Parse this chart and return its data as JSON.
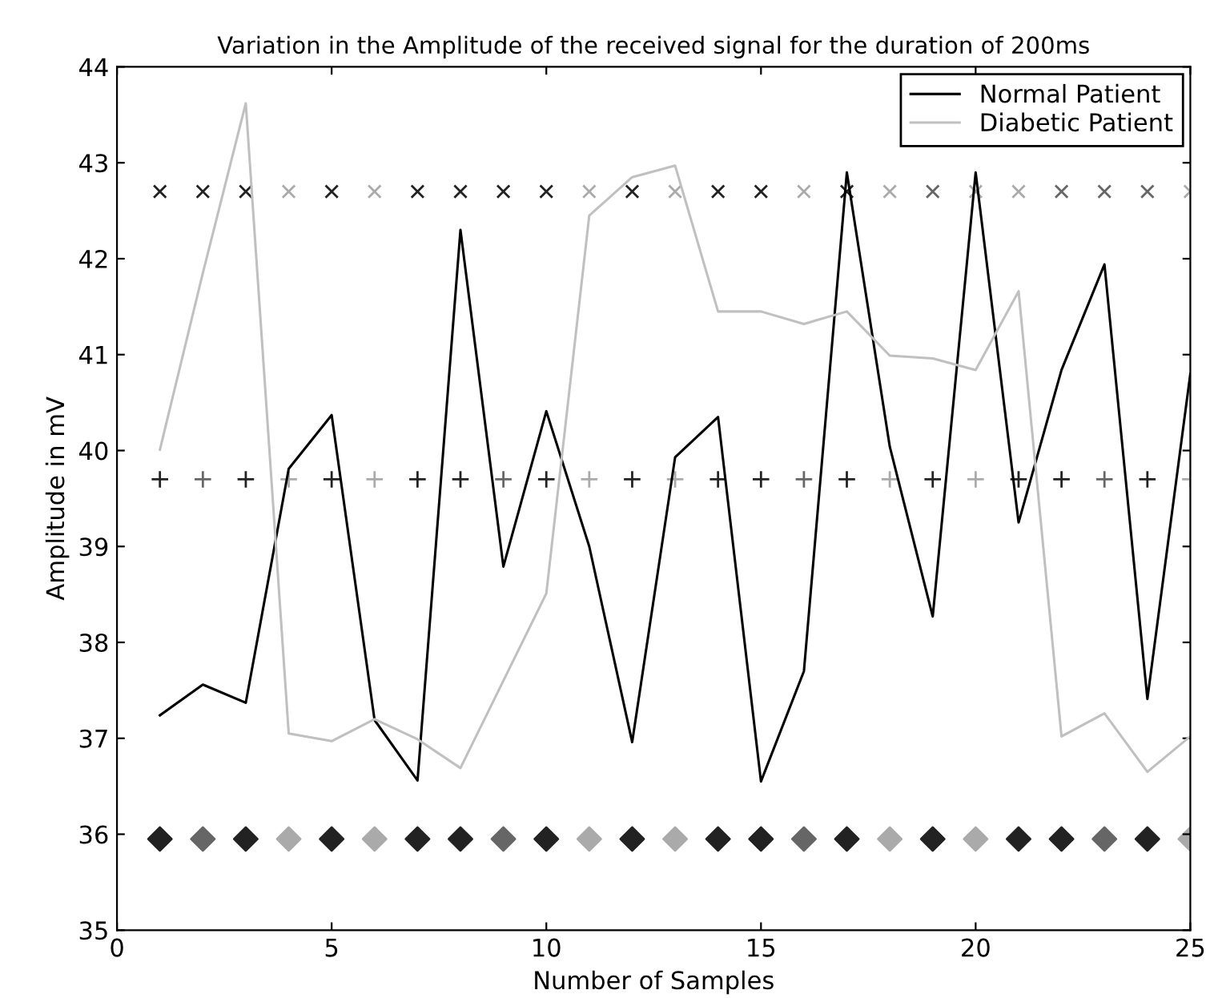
{
  "chart_data": {
    "type": "line",
    "title": "Variation in the Amplitude of the received signal for the duration of 200ms",
    "xlabel": "Number of Samples",
    "ylabel": "Amplitude in mV",
    "xlim": [
      0,
      25
    ],
    "xticks": [
      0,
      5,
      10,
      15,
      20,
      25
    ],
    "ylim": [
      35,
      44
    ],
    "yticks": [
      35,
      36,
      37,
      38,
      39,
      40,
      41,
      42,
      43,
      44
    ],
    "grid": false,
    "legend": "top right",
    "marker": "none",
    "line_style": "solid",
    "series": [
      {
        "name": "Normal Patient",
        "color": "#000000",
        "x": [
          1,
          2,
          3,
          4,
          5,
          6,
          7,
          8,
          9,
          10,
          11,
          12,
          13,
          14,
          15,
          16,
          17,
          18,
          19,
          20,
          21,
          22,
          23,
          24,
          25
        ],
        "values": [
          37.24,
          37.56,
          37.37,
          39.81,
          40.37,
          37.19,
          36.56,
          42.3,
          38.79,
          40.41,
          39.0,
          36.96,
          39.93,
          40.35,
          36.55,
          37.7,
          42.9,
          40.04,
          38.27,
          42.9,
          39.25,
          40.84,
          41.94,
          37.41,
          40.8
        ]
      },
      {
        "name": "Diabetic Patient",
        "color": "#c0c0c0",
        "x": [
          1,
          2,
          3,
          4,
          5,
          6,
          7,
          8,
          9,
          10,
          11,
          12,
          13,
          14,
          15,
          16,
          17,
          18,
          19,
          20,
          21,
          22,
          23,
          24,
          25
        ],
        "values": [
          40.01,
          41.85,
          43.62,
          37.05,
          36.97,
          37.2,
          36.99,
          36.69,
          37.6,
          38.51,
          42.45,
          42.85,
          42.97,
          41.45,
          41.45,
          41.32,
          41.45,
          40.99,
          40.96,
          40.84,
          41.66,
          37.02,
          37.26,
          36.65,
          37.02
        ]
      },
      {
        "type": "scatter",
        "marker": "cross",
        "x": [
          1,
          2,
          3,
          4,
          5,
          6,
          7,
          8,
          9,
          10,
          11,
          12,
          13,
          14,
          15,
          16,
          17,
          18,
          19,
          20,
          21,
          22,
          23,
          24,
          25
        ],
        "values": [
          42.7,
          42.7,
          42.7,
          42.7,
          42.7,
          42.7,
          42.7,
          42.7,
          42.7,
          42.7,
          42.7,
          42.7,
          42.7,
          42.7,
          42.7,
          42.7,
          42.7,
          42.7,
          42.7,
          42.7,
          42.7,
          42.7,
          42.7,
          42.7,
          42.7
        ],
        "colors": [
          "#222222",
          "#222222",
          "#222222",
          "#aaaaaa",
          "#222222",
          "#aaaaaa",
          "#222222",
          "#222222",
          "#222222",
          "#222222",
          "#aaaaaa",
          "#222222",
          "#aaaaaa",
          "#222222",
          "#222222",
          "#aaaaaa",
          "#222222",
          "#aaaaaa",
          "#666666",
          "#aaaaaa",
          "#aaaaaa",
          "#666666",
          "#666666",
          "#666666",
          "#aaaaaa"
        ]
      },
      {
        "type": "scatter",
        "marker": "plus",
        "x": [
          1,
          2,
          3,
          4,
          5,
          6,
          7,
          8,
          9,
          10,
          11,
          12,
          13,
          14,
          15,
          16,
          17,
          18,
          19,
          20,
          21,
          22,
          23,
          24,
          25
        ],
        "values": [
          39.7,
          39.7,
          39.7,
          39.7,
          39.7,
          39.7,
          39.7,
          39.7,
          39.7,
          39.7,
          39.7,
          39.7,
          39.7,
          39.7,
          39.7,
          39.7,
          39.7,
          39.7,
          39.7,
          39.7,
          39.7,
          39.7,
          39.7,
          39.7,
          39.7
        ],
        "colors": [
          "#222222",
          "#666666",
          "#222222",
          "#aaaaaa",
          "#222222",
          "#aaaaaa",
          "#222222",
          "#222222",
          "#666666",
          "#222222",
          "#aaaaaa",
          "#222222",
          "#aaaaaa",
          "#222222",
          "#222222",
          "#666666",
          "#222222",
          "#aaaaaa",
          "#222222",
          "#aaaaaa",
          "#222222",
          "#222222",
          "#666666",
          "#222222",
          "#aaaaaa"
        ]
      },
      {
        "type": "scatter",
        "marker": "diamond",
        "x": [
          1,
          2,
          3,
          4,
          5,
          6,
          7,
          8,
          9,
          10,
          11,
          12,
          13,
          14,
          15,
          16,
          17,
          18,
          19,
          20,
          21,
          22,
          23,
          24,
          25
        ],
        "values": [
          35.95,
          35.95,
          35.95,
          35.95,
          35.95,
          35.95,
          35.95,
          35.95,
          35.95,
          35.95,
          35.95,
          35.95,
          35.95,
          35.95,
          35.95,
          35.95,
          35.95,
          35.95,
          35.95,
          35.95,
          35.95,
          35.95,
          35.95,
          35.95,
          35.95
        ],
        "colors": [
          "#222222",
          "#666666",
          "#222222",
          "#aaaaaa",
          "#222222",
          "#aaaaaa",
          "#222222",
          "#222222",
          "#666666",
          "#222222",
          "#aaaaaa",
          "#222222",
          "#aaaaaa",
          "#222222",
          "#222222",
          "#666666",
          "#222222",
          "#aaaaaa",
          "#222222",
          "#aaaaaa",
          "#222222",
          "#222222",
          "#666666",
          "#222222",
          "#aaaaaa"
        ]
      }
    ]
  }
}
